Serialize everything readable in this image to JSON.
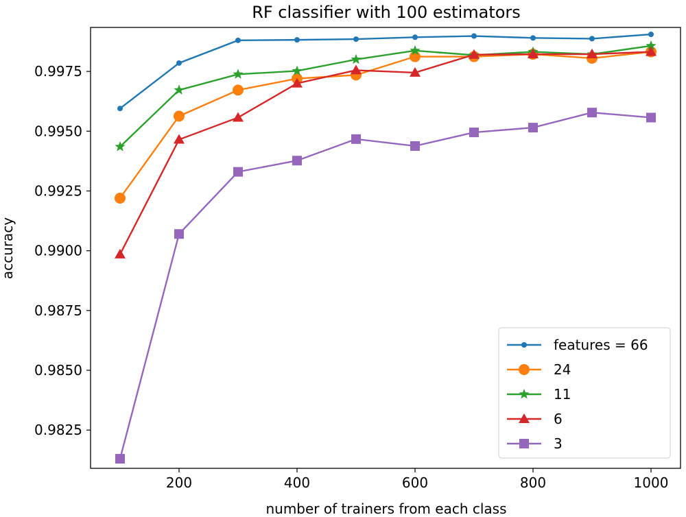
{
  "chart_data": {
    "type": "line",
    "title": "RF classifier with 100 estimators",
    "xlabel": "number of trainers from each class",
    "ylabel": "accuracy",
    "x": [
      100,
      200,
      300,
      400,
      500,
      600,
      700,
      800,
      900,
      1000
    ],
    "xlim": [
      50,
      1050
    ],
    "ylim": [
      0.9809,
      0.99934
    ],
    "xticks": [
      200,
      400,
      600,
      800,
      1000
    ],
    "yticks": [
      0.9825,
      0.985,
      0.9875,
      0.99,
      0.9925,
      0.995,
      0.9975
    ],
    "ytick_labels": [
      "0.9825",
      "0.9850",
      "0.9875",
      "0.9900",
      "0.9925",
      "0.9950",
      "0.9975"
    ],
    "grid": false,
    "legend_position": "lower-right",
    "series": [
      {
        "name": "features = 66",
        "color": "#1f77b4",
        "marker": "dot",
        "values": [
          0.99595,
          0.99785,
          0.9988,
          0.99882,
          0.99885,
          0.99893,
          0.99898,
          0.9989,
          0.99887,
          0.99905
        ]
      },
      {
        "name": "24",
        "color": "#ff7f0e",
        "marker": "circle",
        "values": [
          0.9922,
          0.99563,
          0.99672,
          0.9972,
          0.99735,
          0.99812,
          0.99812,
          0.99822,
          0.99805,
          0.99832
        ]
      },
      {
        "name": "11",
        "color": "#2ca02c",
        "marker": "star",
        "values": [
          0.99435,
          0.99672,
          0.99738,
          0.99752,
          0.998,
          0.99837,
          0.99818,
          0.99832,
          0.99822,
          0.99857
        ]
      },
      {
        "name": "6",
        "color": "#d62728",
        "marker": "triangle",
        "values": [
          0.98985,
          0.99465,
          0.99557,
          0.997,
          0.99755,
          0.99745,
          0.9982,
          0.99822,
          0.99822,
          0.99832
        ]
      },
      {
        "name": "3",
        "color": "#9467bd",
        "marker": "square",
        "values": [
          0.9813,
          0.9907,
          0.9933,
          0.99377,
          0.99467,
          0.99438,
          0.99495,
          0.99515,
          0.99578,
          0.99557
        ]
      }
    ]
  }
}
